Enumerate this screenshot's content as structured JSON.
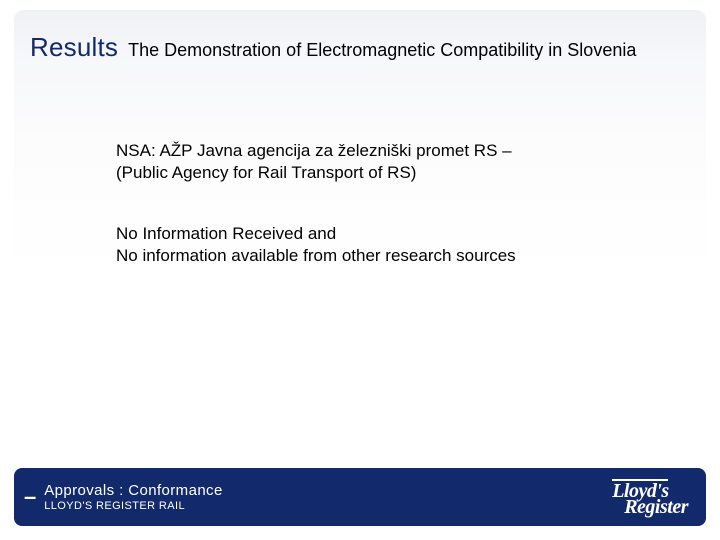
{
  "colors": {
    "brand_navy": "#12296b",
    "panel_gradient_top": "#f0f1f5",
    "panel_gradient_bottom": "#ffffff",
    "text_black": "#000000",
    "text_white": "#ffffff"
  },
  "layout": {
    "slide_width": 720,
    "slide_height": 540,
    "panel_radius": 10,
    "footer_radius": 8
  },
  "header": {
    "label": "Results",
    "label_fontsize": 26,
    "label_color": "#12296b",
    "subtitle": "The Demonstration of Electromagnetic Compatibility in Slovenia",
    "subtitle_fontsize": 18,
    "subtitle_color": "#000000"
  },
  "body": {
    "fontsize": 17,
    "color": "#000000",
    "p1_line1": "NSA: AŽP Javna agencija za železniški promet RS –",
    "p1_line2": "(Public Agency for Rail Transport of RS)",
    "p2_line1": "No Information Received and",
    "p2_line2": "No information available from other research sources"
  },
  "footer": {
    "bg_color": "#12296b",
    "dash": "–",
    "line1": "Approvals : Conformance",
    "line2": "LLOYD'S REGISTER RAIL",
    "logo_line1": "Lloyd's",
    "logo_line2": "Register"
  }
}
